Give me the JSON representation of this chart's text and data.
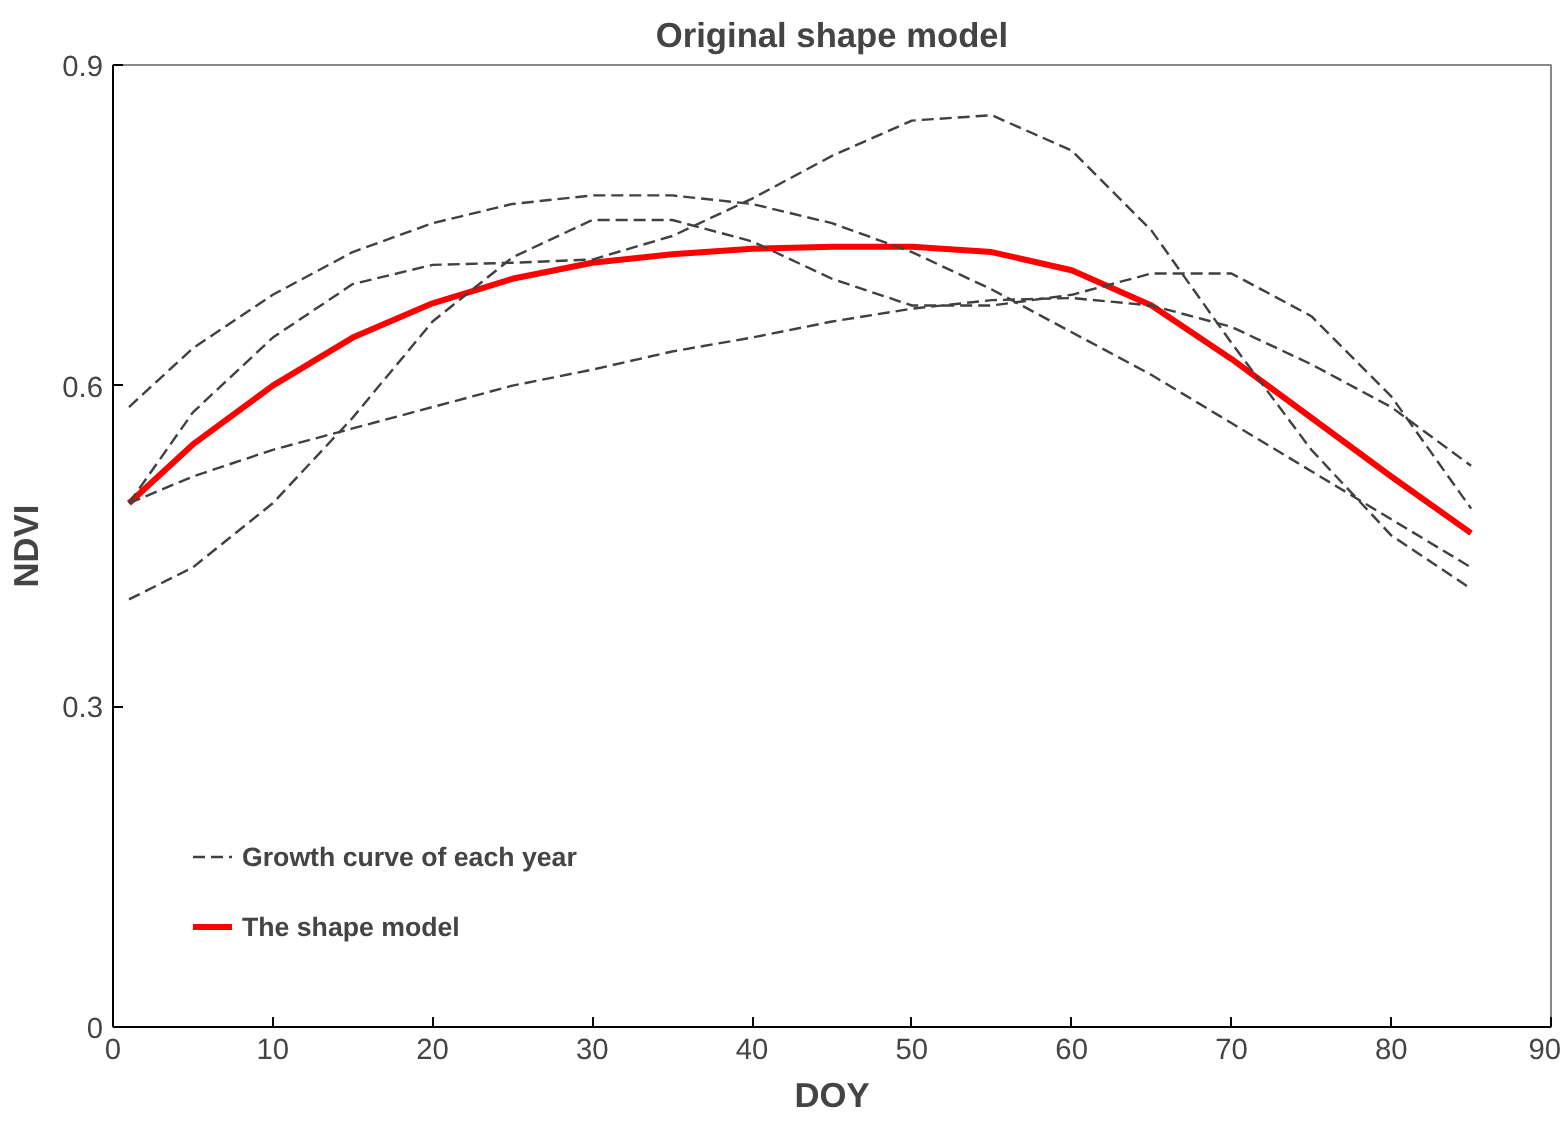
{
  "chart_data": {
    "type": "line",
    "title": "Original shape model",
    "xlabel": "DOY",
    "ylabel": "NDVI",
    "x": [
      1,
      5,
      10,
      15,
      20,
      25,
      30,
      35,
      40,
      45,
      50,
      55,
      60,
      65,
      70,
      75,
      80,
      85
    ],
    "series": [
      {
        "name": "Growth curve of each year",
        "color": "#404040",
        "line_style": "dashed",
        "values": [
          0.58,
          0.635,
          0.685,
          0.725,
          0.752,
          0.77,
          0.778,
          0.778,
          0.77,
          0.752,
          0.725,
          0.69,
          0.65,
          0.61,
          0.565,
          0.52,
          0.475,
          0.43
        ]
      },
      {
        "color": "#404040",
        "line_style": "dashed",
        "values": [
          0.49,
          0.575,
          0.645,
          0.695,
          0.713,
          0.715,
          0.718,
          0.74,
          0.775,
          0.815,
          0.848,
          0.853,
          0.82,
          0.745,
          0.64,
          0.54,
          0.46,
          0.41
        ]
      },
      {
        "color": "#404040",
        "line_style": "dashed",
        "values": [
          0.49,
          0.515,
          0.54,
          0.56,
          0.58,
          0.6,
          0.615,
          0.632,
          0.645,
          0.66,
          0.672,
          0.68,
          0.682,
          0.675,
          0.655,
          0.62,
          0.58,
          0.525
        ]
      },
      {
        "color": "#404040",
        "line_style": "dashed",
        "values": [
          0.4,
          0.43,
          0.49,
          0.57,
          0.66,
          0.72,
          0.755,
          0.755,
          0.735,
          0.7,
          0.675,
          0.675,
          0.685,
          0.705,
          0.705,
          0.665,
          0.59,
          0.485
        ]
      },
      {
        "name": "The shape model",
        "color": "#ff0000",
        "line_style": "solid",
        "values": [
          0.49,
          0.545,
          0.6,
          0.645,
          0.677,
          0.7,
          0.715,
          0.723,
          0.728,
          0.73,
          0.73,
          0.725,
          0.708,
          0.675,
          0.625,
          0.57,
          0.515,
          0.462
        ]
      }
    ],
    "xlim": [
      0,
      90
    ],
    "ylim": [
      0,
      0.9
    ],
    "xticks": [
      0,
      10,
      20,
      30,
      40,
      50,
      60,
      70,
      80,
      90
    ],
    "yticks": [
      0,
      0.3,
      0.6,
      0.9
    ],
    "grid": false,
    "legend": "bottom left"
  }
}
